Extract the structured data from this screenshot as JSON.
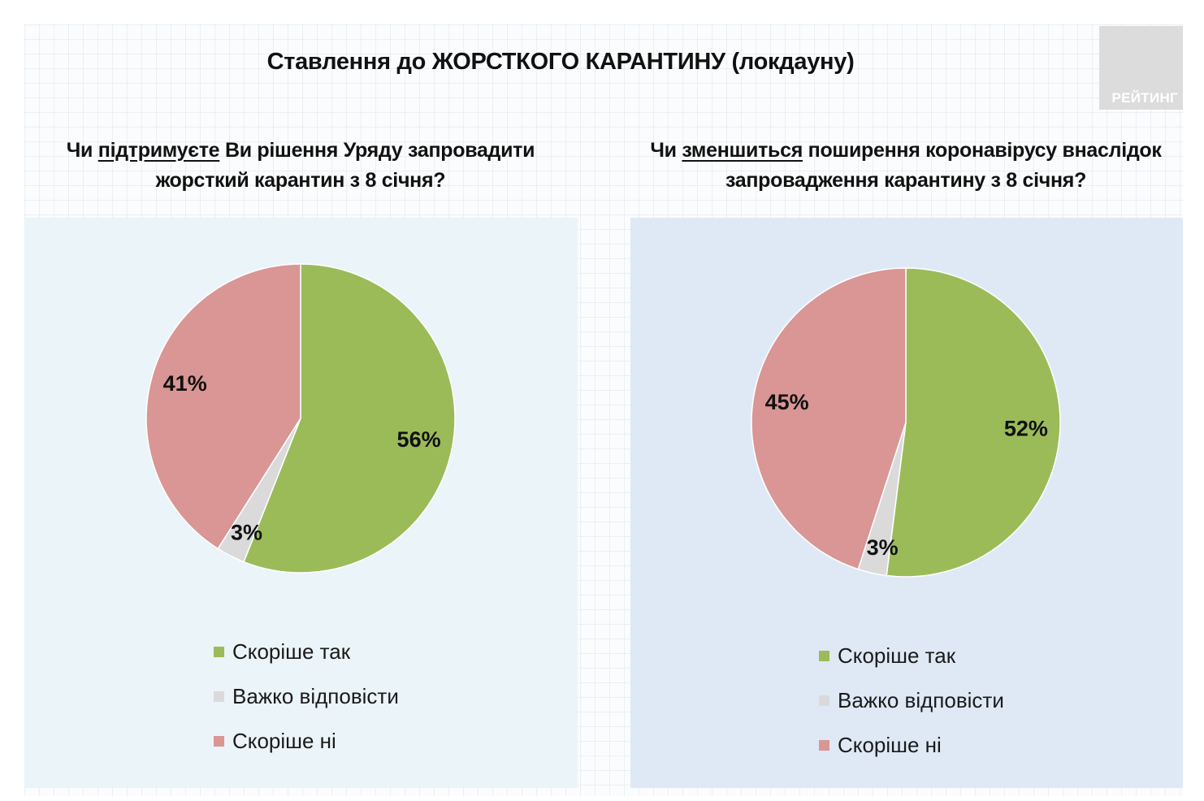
{
  "header": {
    "title": "Ставлення до ЖОРСТКОГО КАРАНТИНУ (локдауну)",
    "logo_text": "РЕЙТИНГ"
  },
  "colors": {
    "yes": "#9bbb59",
    "hard": "#dadada",
    "no": "#d99694"
  },
  "questions": [
    {
      "pre": "Чи ",
      "underlined": "підтримуєте",
      "post": " Ви рішення Уряду запровадити",
      "line2": "жорсткий карантин з 8 січня?"
    },
    {
      "pre": "Чи ",
      "underlined": "зменшиться",
      "post": " поширення коронавірусу внаслідок",
      "line2": "запровадження карантину з 8 січня?"
    }
  ],
  "legend": [
    {
      "label": "Скоріше так",
      "color_key": "yes"
    },
    {
      "label": "Важко відповісти",
      "color_key": "hard"
    },
    {
      "label": "Скоріше ні",
      "color_key": "no"
    }
  ],
  "chart_data": [
    {
      "type": "pie",
      "title": "",
      "categories": [
        "Скоріше так",
        "Важко відповісти",
        "Скоріше ні"
      ],
      "values": [
        56,
        3,
        41
      ],
      "labels": [
        "56%",
        "3%",
        "41%"
      ]
    },
    {
      "type": "pie",
      "title": "",
      "categories": [
        "Скоріше так",
        "Важко відповісти",
        "Скоріше ні"
      ],
      "values": [
        52,
        3,
        45
      ],
      "labels": [
        "52%",
        "3%",
        "45%"
      ]
    }
  ]
}
